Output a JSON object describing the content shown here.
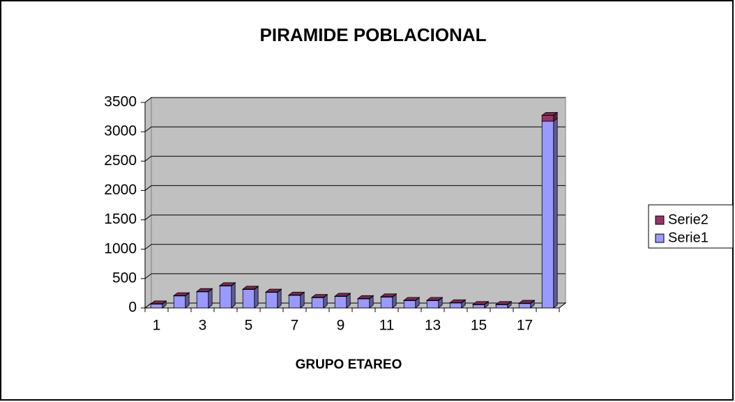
{
  "chart_data": {
    "type": "bar3d_stacked",
    "title": "PIRAMIDE POBLACIONAL",
    "x_label": "GRUPO ETAREO",
    "categories": [
      "1",
      null,
      "3",
      null,
      "5",
      null,
      "7",
      null,
      "9",
      null,
      "11",
      null,
      "13",
      null,
      "15",
      null,
      "17",
      null
    ],
    "series": [
      {
        "name": "Serie1",
        "color": "#9999ff",
        "values": [
          65,
          205,
          275,
          375,
          315,
          265,
          215,
          175,
          195,
          155,
          185,
          125,
          125,
          85,
          55,
          55,
          75,
          3180
        ]
      },
      {
        "name": "Serie2",
        "color": "#993366",
        "values": [
          5,
          5,
          5,
          5,
          5,
          5,
          5,
          5,
          5,
          5,
          5,
          5,
          5,
          5,
          5,
          5,
          5,
          100
        ]
      }
    ],
    "ylim": [
      0,
      3500
    ],
    "yticks": [
      0,
      500,
      1000,
      1500,
      2000,
      2500,
      3000,
      3500
    ],
    "grid": true,
    "legend": "right"
  }
}
